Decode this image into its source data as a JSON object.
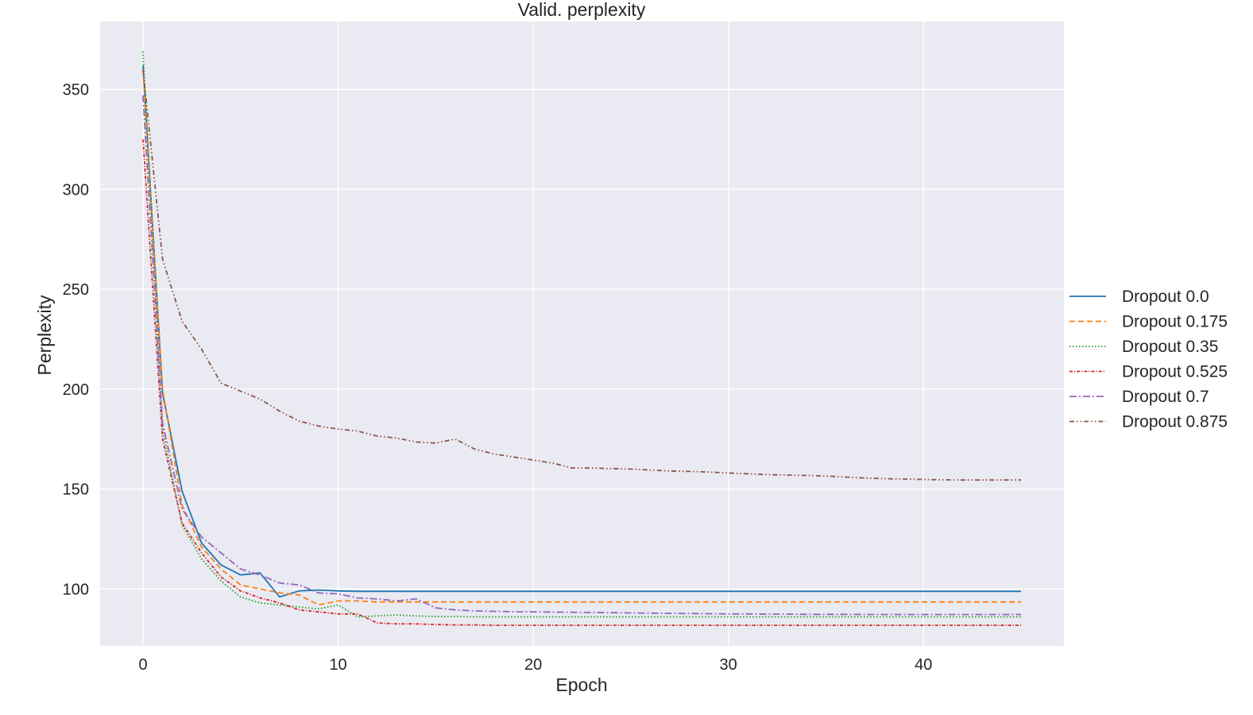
{
  "chart_data": {
    "type": "line",
    "title": "Valid. perplexity",
    "xlabel": "Epoch",
    "ylabel": "Perplexity",
    "xlim": [
      -2.2,
      47.2
    ],
    "ylim": [
      71.5,
      384
    ],
    "xticks": [
      "0",
      "10",
      "20",
      "30",
      "40"
    ],
    "yticks": [
      "100",
      "150",
      "200",
      "250",
      "300",
      "350"
    ],
    "grid": true,
    "background_color": "#eaeaf2",
    "legend_position": "outside-right",
    "series": [
      {
        "name": "Dropout 0.0",
        "color": "#1f77b4",
        "dash": "solid",
        "x": [
          0,
          1,
          2,
          3,
          4,
          5,
          6,
          7,
          8,
          9,
          10,
          11,
          12,
          13,
          14,
          15,
          16,
          17,
          18,
          19,
          20,
          21,
          22,
          23,
          24,
          25,
          26,
          27,
          28,
          29,
          30,
          31,
          32,
          33,
          34,
          35,
          36,
          37,
          38,
          39,
          40,
          41,
          42,
          43,
          44,
          45
        ],
        "y": [
          362,
          198,
          149,
          123,
          112,
          107,
          108,
          96,
          99,
          99.5,
          99,
          98.8,
          98.8,
          98.8,
          98.8,
          98.8,
          98.8,
          98.8,
          98.8,
          98.8,
          98.8,
          98.8,
          98.8,
          98.8,
          98.8,
          98.8,
          98.8,
          98.8,
          98.8,
          98.8,
          98.8,
          98.8,
          98.8,
          98.8,
          98.8,
          98.8,
          98.8,
          98.8,
          98.8,
          98.8,
          98.8,
          98.8,
          98.8,
          98.8,
          98.8,
          98.8
        ]
      },
      {
        "name": "Dropout 0.175",
        "color": "#ff7f0e",
        "dash": "dashed",
        "x": [
          0,
          1,
          2,
          3,
          4,
          5,
          6,
          7,
          8,
          9,
          10,
          11,
          12,
          13,
          14,
          15,
          16,
          17,
          18,
          19,
          20,
          21,
          22,
          23,
          24,
          25,
          26,
          27,
          28,
          29,
          30,
          31,
          32,
          33,
          34,
          35,
          36,
          37,
          38,
          39,
          40,
          41,
          42,
          43,
          44,
          45
        ],
        "y": [
          360,
          200,
          142,
          121,
          110,
          102,
          100,
          98,
          97,
          92,
          94,
          94,
          93.5,
          93.5,
          93.5,
          93.5,
          93.5,
          93.5,
          93.5,
          93.5,
          93.5,
          93.5,
          93.5,
          93.5,
          93.5,
          93.5,
          93.5,
          93.5,
          93.5,
          93.5,
          93.5,
          93.5,
          93.5,
          93.5,
          93.5,
          93.5,
          93.5,
          93.5,
          93.5,
          93.5,
          93.5,
          93.5,
          93.5,
          93.5,
          93.5,
          93.5
        ]
      },
      {
        "name": "Dropout 0.35",
        "color": "#2ca02c",
        "dash": "dotted",
        "x": [
          0,
          1,
          2,
          3,
          4,
          5,
          6,
          7,
          8,
          9,
          10,
          11,
          12,
          13,
          14,
          15,
          16,
          17,
          18,
          19,
          20,
          21,
          22,
          23,
          24,
          25,
          26,
          27,
          28,
          29,
          30,
          31,
          32,
          33,
          34,
          35,
          36,
          37,
          38,
          39,
          40,
          41,
          42,
          43,
          44,
          45
        ],
        "y": [
          369,
          180,
          132,
          115,
          104,
          96,
          93,
          92,
          91,
          90,
          92,
          86,
          86.5,
          87,
          86.5,
          86.2,
          86.2,
          86,
          86,
          86,
          86,
          86,
          86,
          86,
          86,
          86,
          86,
          86,
          86,
          86,
          86,
          86,
          86,
          86,
          86,
          86,
          86,
          86,
          86,
          86,
          86,
          86,
          86,
          86,
          86,
          86
        ]
      },
      {
        "name": "Dropout 0.525",
        "color": "#d62728",
        "dash": "dashdot-dense",
        "x": [
          0,
          1,
          2,
          3,
          4,
          5,
          6,
          7,
          8,
          9,
          10,
          11,
          12,
          13,
          14,
          15,
          16,
          17,
          18,
          19,
          20,
          21,
          22,
          23,
          24,
          25,
          26,
          27,
          28,
          29,
          30,
          31,
          32,
          33,
          34,
          35,
          36,
          37,
          38,
          39,
          40,
          41,
          42,
          43,
          44,
          45
        ],
        "y": [
          325,
          175,
          133,
          118,
          106,
          99,
          95.5,
          93,
          89.5,
          88.5,
          87.5,
          87.5,
          83,
          82.5,
          82.5,
          82.2,
          82,
          82,
          81.8,
          81.8,
          81.8,
          81.8,
          81.8,
          81.8,
          81.8,
          81.8,
          81.8,
          81.8,
          81.8,
          81.8,
          81.8,
          81.8,
          81.8,
          81.8,
          81.8,
          81.8,
          81.8,
          81.8,
          81.8,
          81.8,
          81.8,
          81.8,
          81.8,
          81.8,
          81.8,
          81.8
        ]
      },
      {
        "name": "Dropout 0.7",
        "color": "#9467bd",
        "dash": "dashdot",
        "x": [
          0,
          1,
          2,
          3,
          4,
          5,
          6,
          7,
          8,
          9,
          10,
          11,
          12,
          13,
          14,
          15,
          16,
          17,
          18,
          19,
          20,
          21,
          22,
          23,
          24,
          25,
          26,
          27,
          28,
          29,
          30,
          31,
          32,
          33,
          34,
          35,
          36,
          37,
          38,
          39,
          40,
          41,
          42,
          43,
          44,
          45
        ],
        "y": [
          347,
          183,
          140,
          126,
          118,
          110,
          107,
          103,
          102,
          98,
          97.5,
          95.5,
          95,
          94,
          95,
          90.5,
          89.5,
          89,
          88.8,
          88.6,
          88.5,
          88.4,
          88.3,
          88.2,
          88.1,
          88,
          87.9,
          87.8,
          87.7,
          87.6,
          87.5,
          87.5,
          87.4,
          87.4,
          87.3,
          87.3,
          87.3,
          87.2,
          87.2,
          87.2,
          87.2,
          87.2,
          87.2,
          87.2,
          87.2,
          87.2
        ]
      },
      {
        "name": "Dropout 0.875",
        "color": "#8c564b",
        "dash": "dashdotdot",
        "x": [
          0,
          1,
          2,
          3,
          4,
          5,
          6,
          7,
          8,
          9,
          10,
          11,
          12,
          13,
          14,
          15,
          16,
          17,
          18,
          19,
          20,
          21,
          22,
          23,
          24,
          25,
          26,
          27,
          28,
          29,
          30,
          31,
          32,
          33,
          34,
          35,
          36,
          37,
          38,
          39,
          40,
          41,
          42,
          43,
          44,
          45
        ],
        "y": [
          360,
          265,
          234,
          220,
          203,
          199,
          195,
          189,
          184,
          181.5,
          180,
          179,
          176.5,
          175.5,
          173.5,
          173,
          175,
          170,
          167.5,
          166,
          164.5,
          163,
          160.5,
          160.5,
          160.2,
          160,
          159.5,
          159,
          158.8,
          158.5,
          158,
          157.6,
          157.2,
          157,
          156.8,
          156.5,
          156,
          155.5,
          155.2,
          155,
          154.8,
          154.6,
          154.5,
          154.5,
          154.5,
          154.5
        ]
      }
    ]
  }
}
